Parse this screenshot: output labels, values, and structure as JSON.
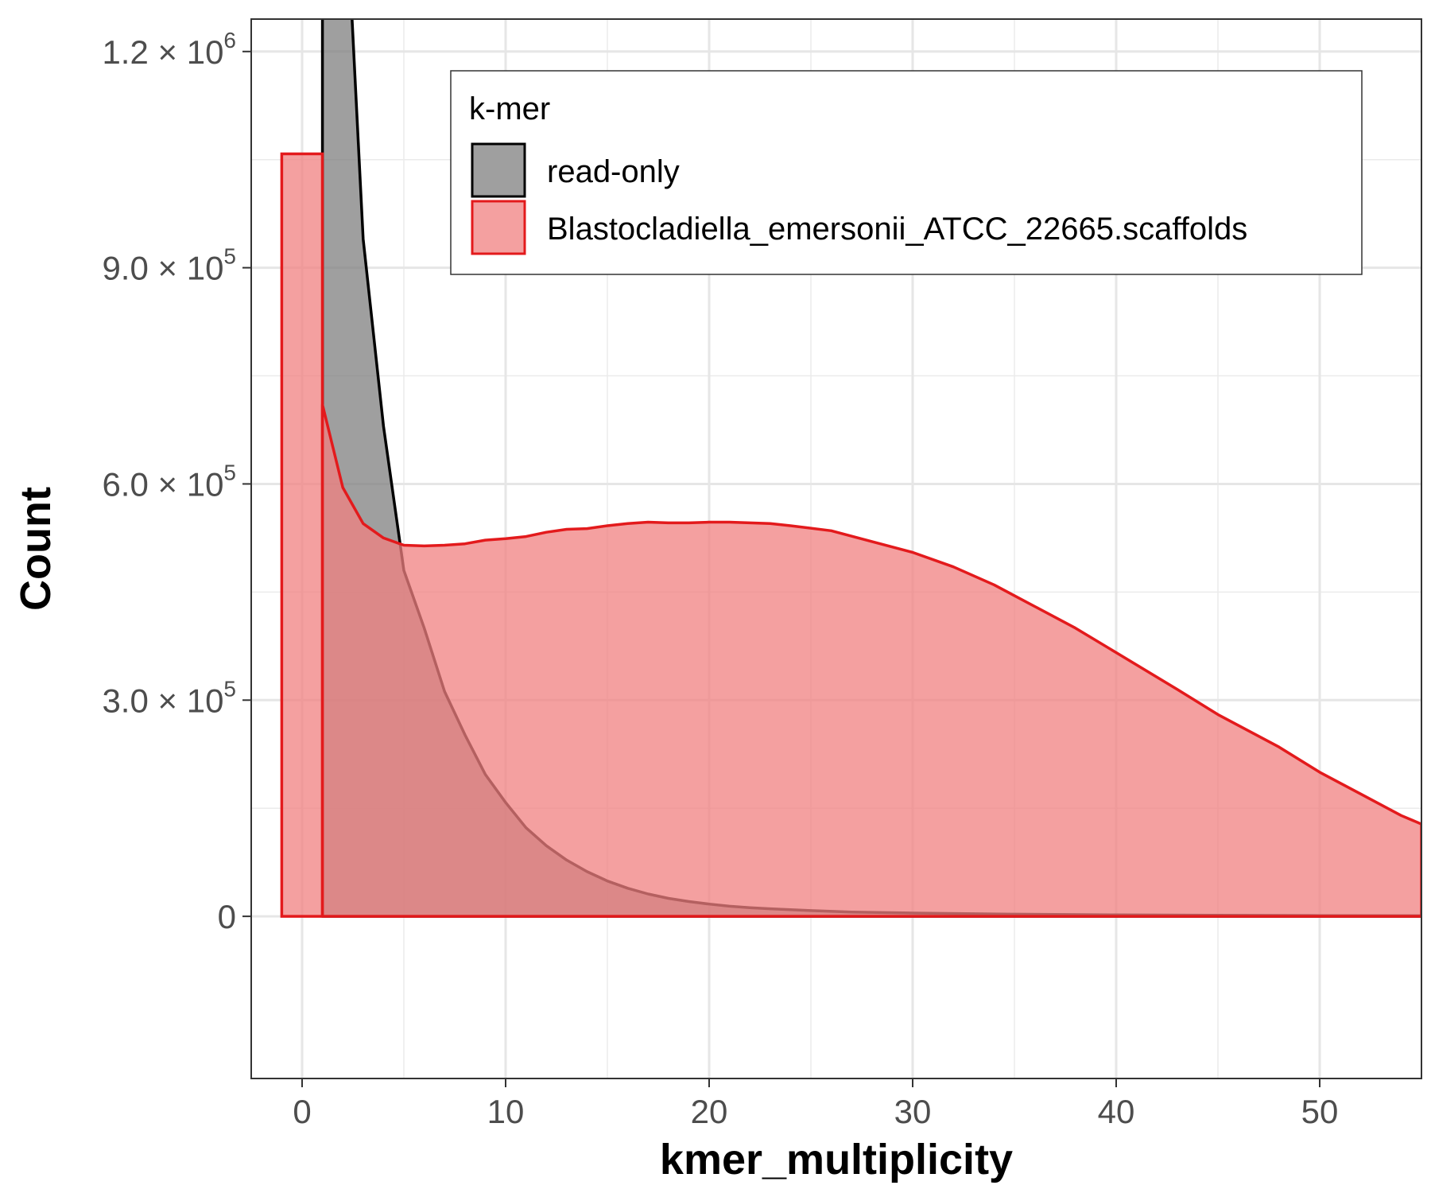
{
  "chart_data": {
    "type": "area",
    "xlabel": "kmer_multiplicity",
    "ylabel": "Count",
    "xlim": [
      -2.5,
      55
    ],
    "ylim": [
      -225000,
      1245000
    ],
    "x_ticks": [
      {
        "value": 0,
        "label": "0"
      },
      {
        "value": 10,
        "label": "10"
      },
      {
        "value": 20,
        "label": "20"
      },
      {
        "value": 30,
        "label": "30"
      },
      {
        "value": 40,
        "label": "40"
      },
      {
        "value": 50,
        "label": "50"
      }
    ],
    "y_ticks": [
      {
        "value": 0,
        "mantissa": "0",
        "exponent": ""
      },
      {
        "value": 300000,
        "mantissa": "3.0 × 10",
        "exponent": "5"
      },
      {
        "value": 600000,
        "mantissa": "6.0 × 10",
        "exponent": "5"
      },
      {
        "value": 900000,
        "mantissa": "9.0 × 10",
        "exponent": "5"
      },
      {
        "value": 1200000,
        "mantissa": "1.2 × 10",
        "exponent": "6"
      }
    ],
    "grid": true,
    "legend": {
      "title": "k-mer",
      "position": "top-right"
    },
    "series": [
      {
        "name": "read-only",
        "color": "#000000",
        "fill": "#7f7f7f",
        "points": [
          [
            1,
            0
          ],
          [
            1,
            1500000
          ],
          [
            2,
            1500000
          ],
          [
            3,
            940000
          ],
          [
            4,
            680000
          ],
          [
            5,
            480000
          ],
          [
            6,
            400000
          ],
          [
            7,
            312000
          ],
          [
            8,
            252000
          ],
          [
            9,
            197000
          ],
          [
            10,
            158000
          ],
          [
            11,
            123000
          ],
          [
            12,
            98000
          ],
          [
            13,
            78000
          ],
          [
            14,
            62000
          ],
          [
            15,
            49000
          ],
          [
            16,
            39000
          ],
          [
            17,
            31000
          ],
          [
            18,
            25000
          ],
          [
            19,
            20500
          ],
          [
            20,
            17000
          ],
          [
            21,
            14000
          ],
          [
            22,
            12000
          ],
          [
            23,
            10500
          ],
          [
            25,
            8000
          ],
          [
            27,
            6000
          ],
          [
            30,
            4500
          ],
          [
            35,
            3000
          ],
          [
            40,
            2000
          ],
          [
            45,
            1500
          ],
          [
            50,
            1000
          ],
          [
            55,
            800
          ],
          [
            55,
            0
          ]
        ]
      },
      {
        "name": "Blastocladiella_emersonii_ATCC_22665.scaffolds",
        "color": "#e31a1c",
        "fill": "#f08080",
        "bars": [
          {
            "x0": -1,
            "x1": 1,
            "value": 1058000
          }
        ],
        "points": [
          [
            1,
            0
          ],
          [
            1,
            710000
          ],
          [
            2,
            595000
          ],
          [
            3,
            545000
          ],
          [
            4,
            525000
          ],
          [
            5,
            515000
          ],
          [
            6,
            514000
          ],
          [
            7,
            515000
          ],
          [
            8,
            517000
          ],
          [
            9,
            522000
          ],
          [
            10,
            524000
          ],
          [
            11,
            527000
          ],
          [
            12,
            533000
          ],
          [
            13,
            537000
          ],
          [
            14,
            538000
          ],
          [
            15,
            542000
          ],
          [
            16,
            545000
          ],
          [
            17,
            547000
          ],
          [
            18,
            546000
          ],
          [
            19,
            546000
          ],
          [
            20,
            547000
          ],
          [
            21,
            547000
          ],
          [
            22,
            546000
          ],
          [
            23,
            545000
          ],
          [
            24,
            542000
          ],
          [
            26,
            535000
          ],
          [
            28,
            520000
          ],
          [
            30,
            505000
          ],
          [
            32,
            485000
          ],
          [
            34,
            460000
          ],
          [
            36,
            430000
          ],
          [
            38,
            400000
          ],
          [
            40,
            366000
          ],
          [
            43,
            315000
          ],
          [
            45,
            280000
          ],
          [
            48,
            235000
          ],
          [
            50,
            200000
          ],
          [
            52,
            170000
          ],
          [
            54,
            140000
          ],
          [
            55,
            128000
          ],
          [
            55,
            0
          ]
        ]
      }
    ]
  }
}
